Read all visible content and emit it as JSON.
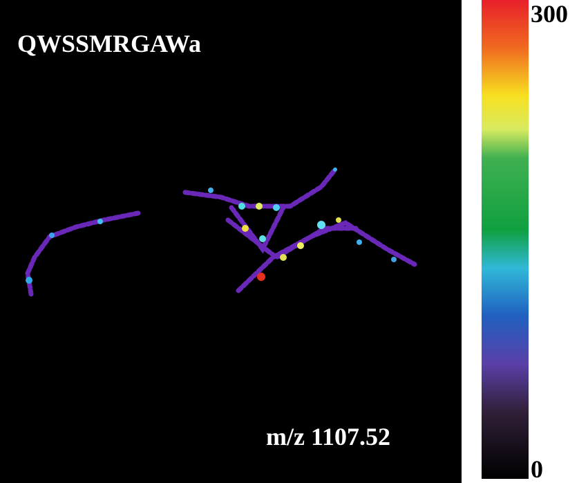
{
  "image": {
    "title": "QWSSMRGAWa",
    "annotation": "m/z 1107.52"
  },
  "colorbar": {
    "max_label": "300",
    "min_label": "0"
  }
}
